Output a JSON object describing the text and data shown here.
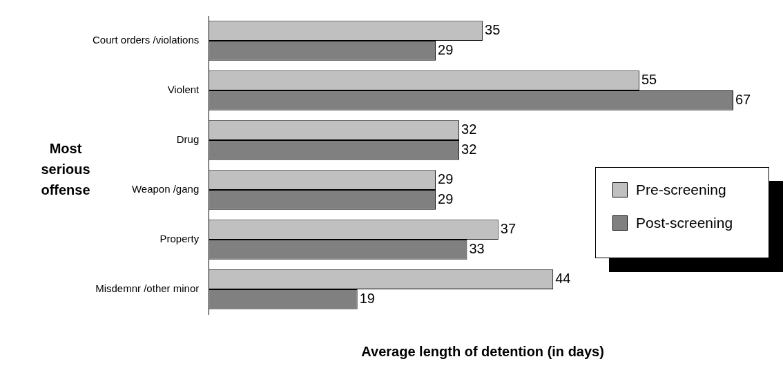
{
  "chart_data": {
    "type": "bar",
    "orientation": "horizontal",
    "xlabel": "Average length of detention (in days)",
    "ylabel": "Most serious offense",
    "categories": [
      "Court orders /violations",
      "Violent",
      "Drug",
      "Weapon /gang",
      "Property",
      "Misdemnr /other minor"
    ],
    "series": [
      {
        "name": "Pre-screening",
        "color": "#c0c0c0",
        "values": [
          35,
          55,
          32,
          29,
          37,
          44
        ]
      },
      {
        "name": "Post-screening",
        "color": "#808080",
        "values": [
          29,
          67,
          32,
          29,
          33,
          19
        ]
      }
    ],
    "data_labels": true,
    "legend": "right",
    "grid": false
  }
}
